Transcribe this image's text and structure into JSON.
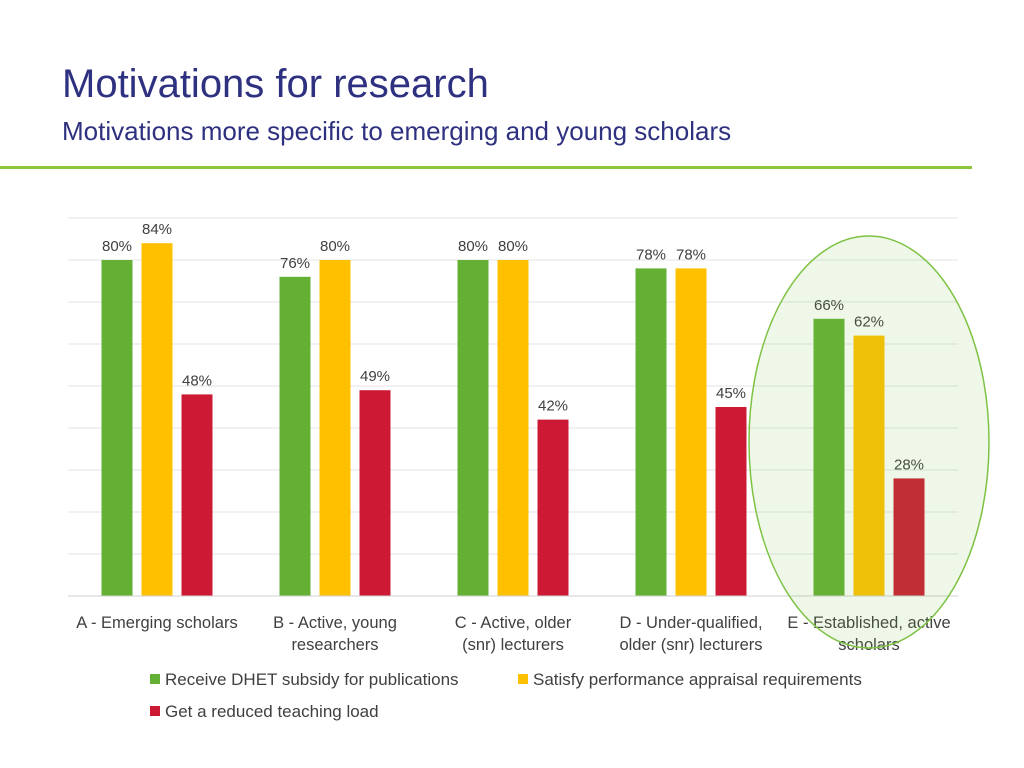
{
  "header": {
    "title": "Motivations for research",
    "subtitle": "Motivations more specific to emerging and young scholars"
  },
  "chart_data": {
    "type": "bar",
    "title": "",
    "xlabel": "",
    "ylabel": "",
    "ylim": [
      0,
      90
    ],
    "grid": true,
    "categories": [
      [
        "A - Emerging scholars"
      ],
      [
        "B - Active, young",
        "researchers"
      ],
      [
        "C - Active, older",
        "(snr) lecturers"
      ],
      [
        "D - Under-qualified,",
        "older (snr) lecturers"
      ],
      [
        "E - Established, active",
        "scholars"
      ]
    ],
    "series": [
      {
        "name": "Receive DHET subsidy for publications",
        "color": "#63b035",
        "values": [
          80,
          76,
          80,
          78,
          66
        ],
        "labels": [
          "80%",
          "76%",
          "80%",
          "78%",
          "66%"
        ]
      },
      {
        "name": "Satisfy performance appraisal requirements",
        "color": "#ffc000",
        "values": [
          84,
          80,
          80,
          78,
          62
        ],
        "labels": [
          "84%",
          "80%",
          "80%",
          "78%",
          "62%"
        ]
      },
      {
        "name": "Get a reduced teaching load",
        "color": "#cc1a35",
        "values": [
          48,
          49,
          42,
          45,
          28
        ],
        "labels": [
          "48%",
          "49%",
          "42%",
          "45%",
          "28%"
        ]
      }
    ],
    "highlight": {
      "category_index": 4,
      "shape": "ellipse",
      "color": "#7dc243"
    },
    "legend_position": "bottom"
  }
}
